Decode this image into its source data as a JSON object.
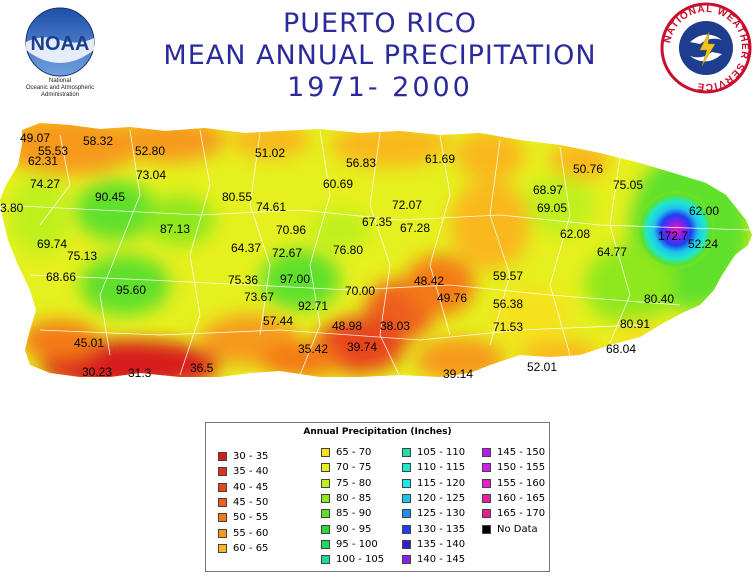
{
  "header": {
    "title_line1": "PUERTO RICO",
    "title_line2": "MEAN ANNUAL PRECIPITATION",
    "title_line3": "1971- 2000"
  },
  "noaa_logo": {
    "letters": "NOAA",
    "caption_1": "National",
    "caption_2": "Oceanic and Atmospheric",
    "caption_3": "Administration"
  },
  "nws_logo": {
    "ring_text": "NATIONAL WEATHER SERVICE"
  },
  "stations": [
    {
      "value": "49.07"
    },
    {
      "value": "55.53"
    },
    {
      "value": "58.32"
    },
    {
      "value": "52.80"
    },
    {
      "value": "51.02"
    },
    {
      "value": "56.83"
    },
    {
      "value": "61.69"
    },
    {
      "value": "50.76"
    },
    {
      "value": "62.31"
    },
    {
      "value": "73.04"
    },
    {
      "value": "60.69"
    },
    {
      "value": "68.97"
    },
    {
      "value": "75.05"
    },
    {
      "value": "74.27"
    },
    {
      "value": "80.55"
    },
    {
      "value": "90.45"
    },
    {
      "value": "74.61"
    },
    {
      "value": "72.07"
    },
    {
      "value": "69.05"
    },
    {
      "value": "3.80"
    },
    {
      "value": "62.00"
    },
    {
      "value": "87.13"
    },
    {
      "value": "70.96"
    },
    {
      "value": "67.35"
    },
    {
      "value": "67.28"
    },
    {
      "value": "62.08"
    },
    {
      "value": "69.74"
    },
    {
      "value": "64.37"
    },
    {
      "value": "72.67"
    },
    {
      "value": "76.80"
    },
    {
      "value": "64.77"
    },
    {
      "value": "52.24"
    },
    {
      "value": "75.13"
    },
    {
      "value": "68.66"
    },
    {
      "value": "75.36"
    },
    {
      "value": "97.00"
    },
    {
      "value": "48.42"
    },
    {
      "value": "59.57"
    },
    {
      "value": "95.60"
    },
    {
      "value": "73.67"
    },
    {
      "value": "70.00"
    },
    {
      "value": "49.76"
    },
    {
      "value": "92.71"
    },
    {
      "value": "56.38"
    },
    {
      "value": "80.40"
    },
    {
      "value": "57.44"
    },
    {
      "value": "48.98"
    },
    {
      "value": "38.03"
    },
    {
      "value": "71.53"
    },
    {
      "value": "80.91"
    },
    {
      "value": "45.01"
    },
    {
      "value": "35.42"
    },
    {
      "value": "39.74"
    },
    {
      "value": "68.04"
    },
    {
      "value": "30.23"
    },
    {
      "value": "31.3"
    },
    {
      "value": "36.5"
    },
    {
      "value": "52.01"
    },
    {
      "value": "39.14"
    },
    {
      "value": "172.7"
    }
  ],
  "legend": {
    "title": "Annual Precipitation (Inches)",
    "columns": [
      [
        {
          "label": "30 - 35",
          "color": "#d81a1a"
        },
        {
          "label": "35 - 40",
          "color": "#e02e1c"
        },
        {
          "label": "40 - 45",
          "color": "#e8441e"
        },
        {
          "label": "45 - 50",
          "color": "#ee5e1e"
        },
        {
          "label": "50 - 55",
          "color": "#f47a18"
        },
        {
          "label": "55 - 60",
          "color": "#f79a1a"
        },
        {
          "label": "60 - 65",
          "color": "#f9b81e"
        }
      ],
      [
        {
          "label": "65 - 70",
          "color": "#f5e21e"
        },
        {
          "label": "70 - 75",
          "color": "#e6f01e"
        },
        {
          "label": "75 - 80",
          "color": "#bff01e"
        },
        {
          "label": "80 - 85",
          "color": "#8ee81e"
        },
        {
          "label": "85 - 90",
          "color": "#5ee02a"
        },
        {
          "label": "90 - 95",
          "color": "#2ed83a"
        },
        {
          "label": "95 - 100",
          "color": "#1ed85e"
        },
        {
          "label": "100 - 105",
          "color": "#1edc8a"
        }
      ],
      [
        {
          "label": "105 - 110",
          "color": "#1ee0a8"
        },
        {
          "label": "110 - 115",
          "color": "#1ee8cc"
        },
        {
          "label": "115 - 120",
          "color": "#1ee8ee"
        },
        {
          "label": "120 - 125",
          "color": "#1ec2ee"
        },
        {
          "label": "125 - 130",
          "color": "#1e8ef0"
        },
        {
          "label": "130 - 135",
          "color": "#1e3ef0"
        },
        {
          "label": "135 - 140",
          "color": "#2e1ed0"
        },
        {
          "label": "140 - 145",
          "color": "#8e1ee8"
        }
      ],
      [
        {
          "label": "145 - 150",
          "color": "#b41ee8"
        },
        {
          "label": "150 - 155",
          "color": "#d21ee8"
        },
        {
          "label": "155 - 160",
          "color": "#e81ecc"
        },
        {
          "label": "160 - 165",
          "color": "#e81ea8"
        },
        {
          "label": "165 - 170",
          "color": "#e81e8a"
        },
        {
          "label": "No Data",
          "color": "#000000"
        }
      ]
    ]
  }
}
